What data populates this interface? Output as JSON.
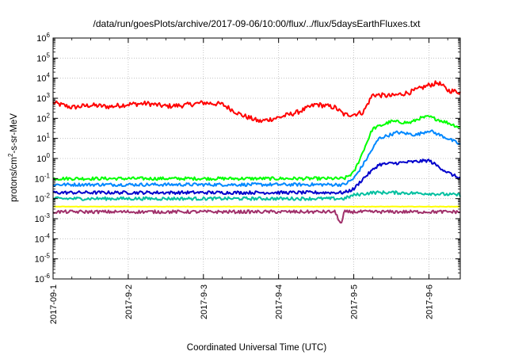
{
  "chart_data": {
    "type": "line",
    "title": "/data/run/goesPlots/archive/2017-09-06/10:00/flux/../flux/5daysEarthFluxes.txt",
    "xlabel": "Coordinated Universal Time (UTC)",
    "ylabel": {
      "prefix": "protons/cm",
      "superscript": "2",
      "suffix": "-s-sr-MeV"
    },
    "y_scale": "log",
    "ylim": [
      1e-06,
      1000000.0
    ],
    "xlim": [
      "2017-09-01 00:00",
      "2017-09-06 10:00"
    ],
    "x_ticks": [
      "2017-09-1",
      "2017-9-2",
      "2017-9-3",
      "2017-9-4",
      "2017-9-5",
      "2017-9-6"
    ],
    "y_ticks": [
      {
        "base": "10",
        "exp": "-6"
      },
      {
        "base": "10",
        "exp": "-5"
      },
      {
        "base": "10",
        "exp": "-4"
      },
      {
        "base": "10",
        "exp": "-3"
      },
      {
        "base": "10",
        "exp": "-2"
      },
      {
        "base": "10",
        "exp": "-1"
      },
      {
        "base": "10",
        "exp": "0"
      },
      {
        "base": "10",
        "exp": "1"
      },
      {
        "base": "10",
        "exp": "2"
      },
      {
        "base": "10",
        "exp": "3"
      },
      {
        "base": "10",
        "exp": "4"
      },
      {
        "base": "10",
        "exp": "5"
      },
      {
        "base": "10",
        "exp": "6"
      }
    ],
    "grid": true,
    "legend": "none",
    "series": [
      {
        "color": "#ff0000",
        "x": [
          "2017-09-01 00:00",
          "2017-09-01 06:00",
          "2017-09-01 12:00",
          "2017-09-01 18:00",
          "2017-09-02 00:00",
          "2017-09-02 06:00",
          "2017-09-02 12:00",
          "2017-09-02 18:00",
          "2017-09-03 00:00",
          "2017-09-03 06:00",
          "2017-09-03 12:00",
          "2017-09-03 18:00",
          "2017-09-04 00:00",
          "2017-09-04 06:00",
          "2017-09-04 12:00",
          "2017-09-04 18:00",
          "2017-09-04 21:00",
          "2017-09-05 00:00",
          "2017-09-05 03:00",
          "2017-09-05 06:00",
          "2017-09-05 12:00",
          "2017-09-05 18:00",
          "2017-09-06 00:00",
          "2017-09-06 03:00",
          "2017-09-06 06:00",
          "2017-09-06 10:00"
        ],
        "y": [
          600,
          350,
          450,
          380,
          500,
          550,
          400,
          450,
          600,
          500,
          150,
          70,
          110,
          200,
          500,
          350,
          150,
          160,
          200,
          1500,
          1300,
          2000,
          4500,
          6000,
          2500,
          2000
        ]
      },
      {
        "color": "#00ff00",
        "x": [
          "2017-09-01 00:00",
          "2017-09-02 00:00",
          "2017-09-03 00:00",
          "2017-09-04 00:00",
          "2017-09-04 21:00",
          "2017-09-05 00:00",
          "2017-09-05 02:00",
          "2017-09-05 06:00",
          "2017-09-05 12:00",
          "2017-09-05 18:00",
          "2017-09-05 21:00",
          "2017-09-06 00:00",
          "2017-09-06 06:00",
          "2017-09-06 10:00"
        ],
        "y": [
          0.1,
          0.1,
          0.1,
          0.1,
          0.1,
          0.2,
          1,
          30,
          70,
          60,
          100,
          120,
          60,
          35
        ]
      },
      {
        "color": "#0088ff",
        "x": [
          "2017-09-01 00:00",
          "2017-09-02 00:00",
          "2017-09-03 00:00",
          "2017-09-04 00:00",
          "2017-09-04 21:00",
          "2017-09-05 00:00",
          "2017-09-05 03:00",
          "2017-09-05 08:00",
          "2017-09-05 14:00",
          "2017-09-05 20:00",
          "2017-09-06 00:00",
          "2017-09-06 06:00",
          "2017-09-06 10:00"
        ],
        "y": [
          0.05,
          0.05,
          0.05,
          0.05,
          0.05,
          0.1,
          0.5,
          10,
          20,
          15,
          25,
          10,
          5
        ]
      },
      {
        "color": "#0000cc",
        "x": [
          "2017-09-01 00:00",
          "2017-09-02 00:00",
          "2017-09-03 00:00",
          "2017-09-04 00:00",
          "2017-09-04 21:00",
          "2017-09-05 00:00",
          "2017-09-05 03:00",
          "2017-09-05 08:00",
          "2017-09-05 14:00",
          "2017-09-05 20:00",
          "2017-09-06 00:00",
          "2017-09-06 06:00",
          "2017-09-06 10:00"
        ],
        "y": [
          0.02,
          0.02,
          0.02,
          0.02,
          0.02,
          0.03,
          0.1,
          0.5,
          0.6,
          0.7,
          0.8,
          0.2,
          0.1
        ]
      },
      {
        "color": "#00c0a0",
        "x": [
          "2017-09-01 00:00",
          "2017-09-02 00:00",
          "2017-09-03 00:00",
          "2017-09-04 00:00",
          "2017-09-04 21:00",
          "2017-09-05 00:00",
          "2017-09-05 06:00",
          "2017-09-05 12:00",
          "2017-09-06 00:00",
          "2017-09-06 10:00"
        ],
        "y": [
          0.01,
          0.01,
          0.01,
          0.01,
          0.01,
          0.015,
          0.02,
          0.02,
          0.018,
          0.015
        ]
      },
      {
        "color": "#ffff00",
        "x": [
          "2017-09-01 00:00",
          "2017-09-06 10:00"
        ],
        "y": [
          0.004,
          0.004
        ]
      },
      {
        "color": "#a0306a",
        "x": [
          "2017-09-01 00:00",
          "2017-09-04 18:00",
          "2017-09-04 20:00",
          "2017-09-04 21:00",
          "2017-09-04 22:00",
          "2017-09-06 10:00"
        ],
        "y": [
          0.0022,
          0.0022,
          0.0005,
          0.0022,
          0.0022,
          0.0022
        ]
      }
    ]
  }
}
